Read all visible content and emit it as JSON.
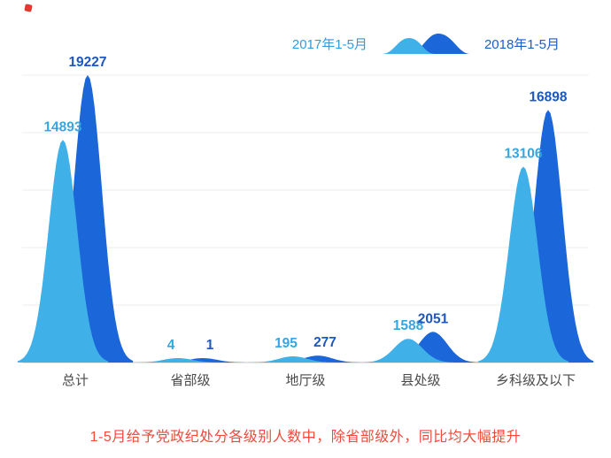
{
  "legend": {
    "series1_label": "2017年1-5月",
    "series2_label": "2018年1-5月"
  },
  "caption": {
    "text": "1-5月给予党政纪处分各级别人数中，除省部级外，同比均大幅提升"
  },
  "colors": {
    "series1": "#3fb1e8",
    "series2": "#1b66d9",
    "series1_label": "#36a6e0",
    "series2_label": "#1e57c0",
    "legend_series1_text": "#2f9de0",
    "legend_series2_text": "#1b5fc6",
    "grid": "#ececec",
    "baseline": "#d9d9d9",
    "category_text": "#4a4a4a",
    "caption_text": "#ef4b3c"
  },
  "chart_data": {
    "type": "area",
    "categories": [
      "总计",
      "省部级",
      "地厅级",
      "县处级",
      "乡科级及以下"
    ],
    "series": [
      {
        "name": "2017年1-5月",
        "values": [
          14893,
          4,
          195,
          1588,
          13106
        ]
      },
      {
        "name": "2018年1-5月",
        "values": [
          19227,
          1,
          277,
          2051,
          16898
        ]
      }
    ],
    "title": "",
    "xlabel": "",
    "ylabel": "",
    "ylim": [
      0,
      19227
    ],
    "grid": true,
    "legend_position": "top-right"
  }
}
